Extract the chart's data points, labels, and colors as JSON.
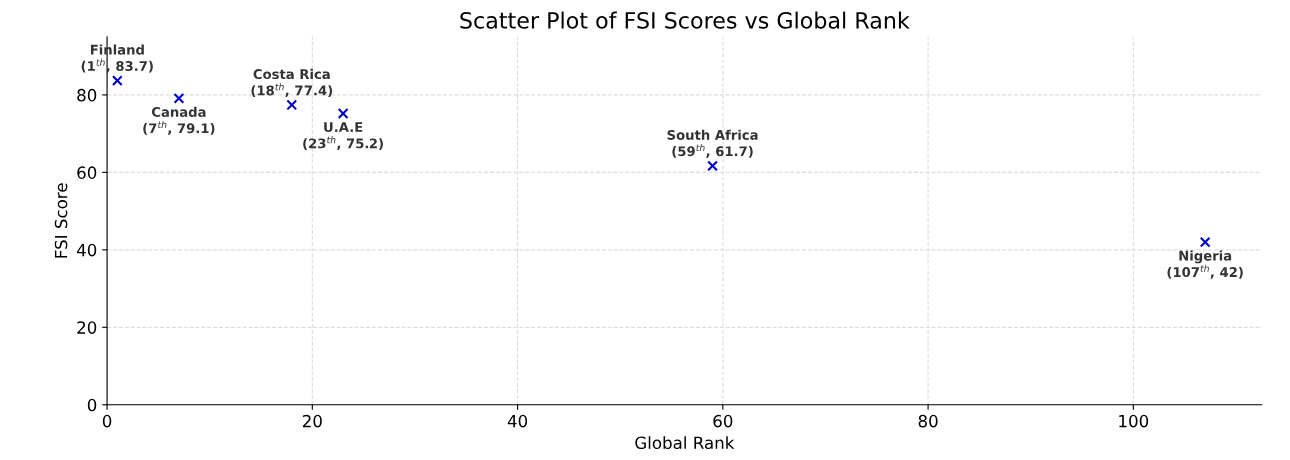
{
  "chart_data": {
    "type": "scatter",
    "title": "Scatter Plot of FSI Scores vs Global Rank",
    "xlabel": "Global Rank",
    "ylabel": "FSI Score",
    "x": [
      1,
      7,
      18,
      23,
      59,
      107
    ],
    "series": [
      {
        "color": "#0000cc",
        "values": [
          83.7,
          79.1,
          77.4,
          75.2,
          61.7,
          42
        ]
      }
    ],
    "annotations": [
      {
        "text": "Finland\n(1$^{th}$, 83.7)",
        "x": 1,
        "y": 83.7
      },
      {
        "text": "Canada\n(7$^{th}$, 79.1)",
        "x": 7,
        "y": 79.1
      },
      {
        "text": "Costa Rica\n(18$^{th}$, 77.4)",
        "x": 18,
        "y": 77.4
      },
      {
        "text": "U.A.E\n(23$^{th}$, 75.2)",
        "x": 23,
        "y": 75.2
      },
      {
        "text": "South Africa\n(59$^{th}$, 61.7)",
        "x": 59,
        "y": 61.7
      },
      {
        "text": "Nigeria\n(107$^{th}$, 42)",
        "x": 107,
        "y": 42
      }
    ],
    "xlim": [
      0,
      112.5
    ],
    "ylim": [
      0,
      95
    ],
    "xticks": [
      0,
      20,
      40,
      60,
      80,
      100
    ],
    "yticks": [
      0,
      20,
      40,
      60,
      80
    ],
    "grid": true,
    "marker": "cross"
  }
}
